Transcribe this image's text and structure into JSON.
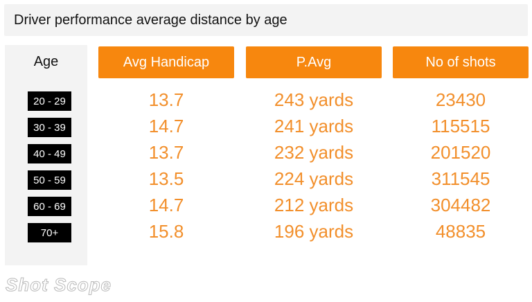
{
  "title": "Driver performance average distance by age",
  "chart_data": {
    "type": "table",
    "title": "Driver performance average distance by age",
    "columns": [
      "Age",
      "Avg Handicap",
      "P.Avg",
      "No of shots"
    ],
    "rows": [
      {
        "age": "20 - 29",
        "handicap": "13.7",
        "pavg": "243 yards",
        "shots": "23430"
      },
      {
        "age": "30 - 39",
        "handicap": "14.7",
        "pavg": "241 yards",
        "shots": "115515"
      },
      {
        "age": "40 - 49",
        "handicap": "13.7",
        "pavg": "232 yards",
        "shots": "201520"
      },
      {
        "age": "50 - 59",
        "handicap": "13.5",
        "pavg": "224 yards",
        "shots": "311545"
      },
      {
        "age": "60 - 69",
        "handicap": "14.7",
        "pavg": "212 yards",
        "shots": "304482"
      },
      {
        "age": "70+",
        "handicap": "15.8",
        "pavg": "196 yards",
        "shots": "48835"
      }
    ]
  },
  "logo_text": "Shot Scope",
  "colors": {
    "header_bg": "#f7870e",
    "value_text": "#f28f2b",
    "badge_bg": "#000000",
    "panel_bg": "#f3f3f3"
  }
}
